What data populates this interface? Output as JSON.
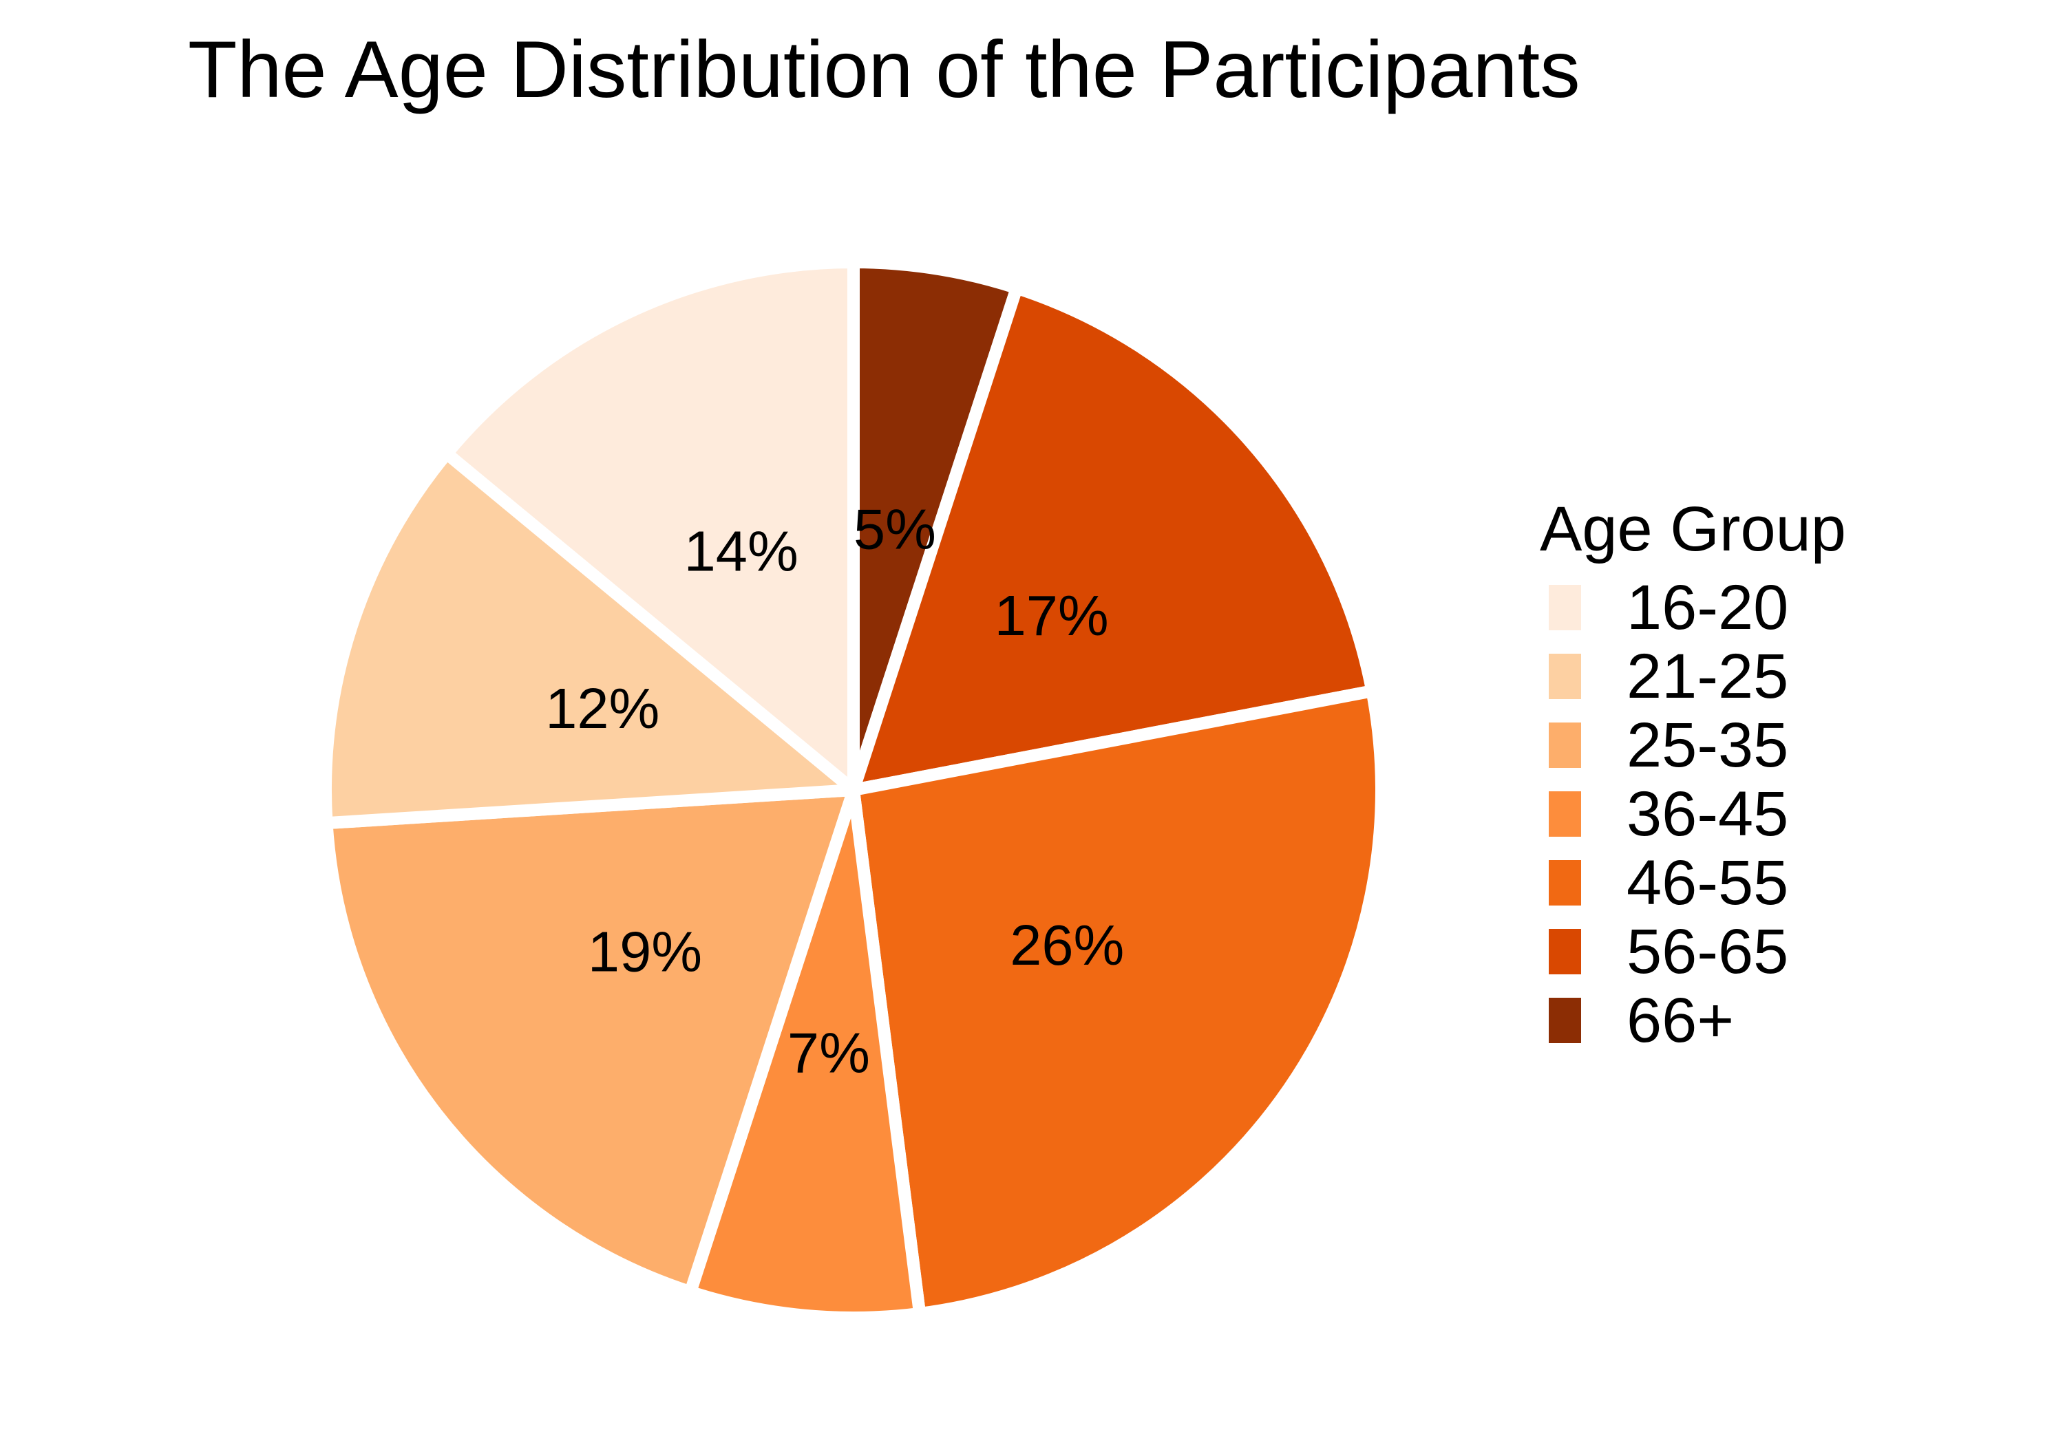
{
  "chart_data": {
    "type": "pie",
    "title": "The Age Distribution of the Participants",
    "legend_title": "Age Group",
    "legend_position": "right",
    "slice_border_color": "#ffffff",
    "start_angle_deg": 0,
    "direction": "clockwise",
    "categories": [
      "16-20",
      "21-25",
      "25-35",
      "36-45",
      "46-55",
      "56-65",
      "66+"
    ],
    "values": [
      14,
      12,
      19,
      7,
      26,
      17,
      5
    ],
    "labels": [
      "14%",
      "12%",
      "19%",
      "7%",
      "26%",
      "17%",
      "5%"
    ],
    "colors": [
      "#FEEBDC",
      "#FDD0A2",
      "#FDAE6B",
      "#FD8D3C",
      "#F16913",
      "#D94801",
      "#8C2D04"
    ],
    "drawing_order": [
      "66+",
      "56-65",
      "46-55",
      "36-45",
      "25-35",
      "21-25",
      "16-20"
    ]
  }
}
